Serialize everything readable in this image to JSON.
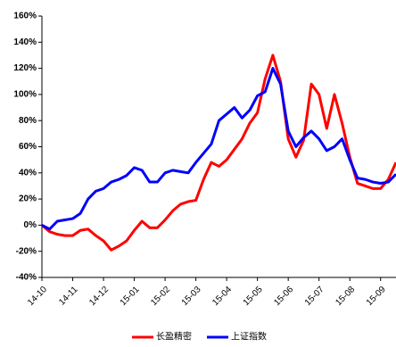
{
  "chart_data": {
    "type": "line",
    "x": [
      0,
      0.25,
      0.5,
      0.75,
      1,
      1.25,
      1.5,
      1.75,
      2,
      2.25,
      2.5,
      2.75,
      3,
      3.25,
      3.5,
      3.75,
      4,
      4.25,
      4.5,
      4.75,
      5,
      5.25,
      5.5,
      5.75,
      6,
      6.25,
      6.5,
      6.75,
      7,
      7.25,
      7.5,
      7.75,
      8,
      8.25,
      8.5,
      8.75,
      9,
      9.25,
      9.5,
      9.75,
      10,
      10.25,
      10.5,
      10.75,
      11,
      11.25,
      11.5
    ],
    "series": [
      {
        "name": "长盈精密",
        "color": "#ff0000",
        "values": [
          0,
          -5,
          -7,
          -8,
          -8,
          -4,
          -3,
          -8,
          -12,
          -19,
          -16,
          -12,
          -4,
          3,
          -2,
          -2,
          4,
          11,
          16,
          18,
          19,
          35,
          48,
          45,
          50,
          58,
          66,
          78,
          86,
          112,
          130,
          110,
          66,
          52,
          65,
          108,
          100,
          74,
          100,
          78,
          52,
          32,
          30,
          28,
          28,
          35,
          48
        ]
      },
      {
        "name": "上证指数",
        "color": "#0000ff",
        "values": [
          0,
          -3,
          3,
          4,
          5,
          9,
          20,
          26,
          28,
          33,
          35,
          38,
          44,
          42,
          33,
          33,
          40,
          42,
          41,
          40,
          48,
          55,
          62,
          80,
          85,
          90,
          82,
          88,
          99,
          102,
          120,
          108,
          72,
          60,
          67,
          72,
          66,
          57,
          60,
          66,
          50,
          36,
          35,
          33,
          32,
          33,
          39
        ]
      }
    ],
    "xlim": [
      0,
      11.5
    ],
    "xticks": [
      {
        "value": 0,
        "label": "14-10"
      },
      {
        "value": 1,
        "label": "14-11"
      },
      {
        "value": 2,
        "label": "14-12"
      },
      {
        "value": 3,
        "label": "15-01"
      },
      {
        "value": 4,
        "label": "15-02"
      },
      {
        "value": 5,
        "label": "15-03"
      },
      {
        "value": 6,
        "label": "15-04"
      },
      {
        "value": 7,
        "label": "15-05"
      },
      {
        "value": 8,
        "label": "15-06"
      },
      {
        "value": 9,
        "label": "15-07"
      },
      {
        "value": 10,
        "label": "15-08"
      },
      {
        "value": 11,
        "label": "15-09"
      }
    ],
    "ylim": [
      -40,
      160
    ],
    "yticks": [
      {
        "value": -40,
        "label": "-40%"
      },
      {
        "value": -20,
        "label": "-20%"
      },
      {
        "value": 0,
        "label": "0%"
      },
      {
        "value": 20,
        "label": "20%"
      },
      {
        "value": 40,
        "label": "40%"
      },
      {
        "value": 60,
        "label": "60%"
      },
      {
        "value": 80,
        "label": "80%"
      },
      {
        "value": 100,
        "label": "100%"
      },
      {
        "value": 120,
        "label": "120%"
      },
      {
        "value": 140,
        "label": "140%"
      },
      {
        "value": 160,
        "label": "160%"
      }
    ],
    "grid": false
  }
}
